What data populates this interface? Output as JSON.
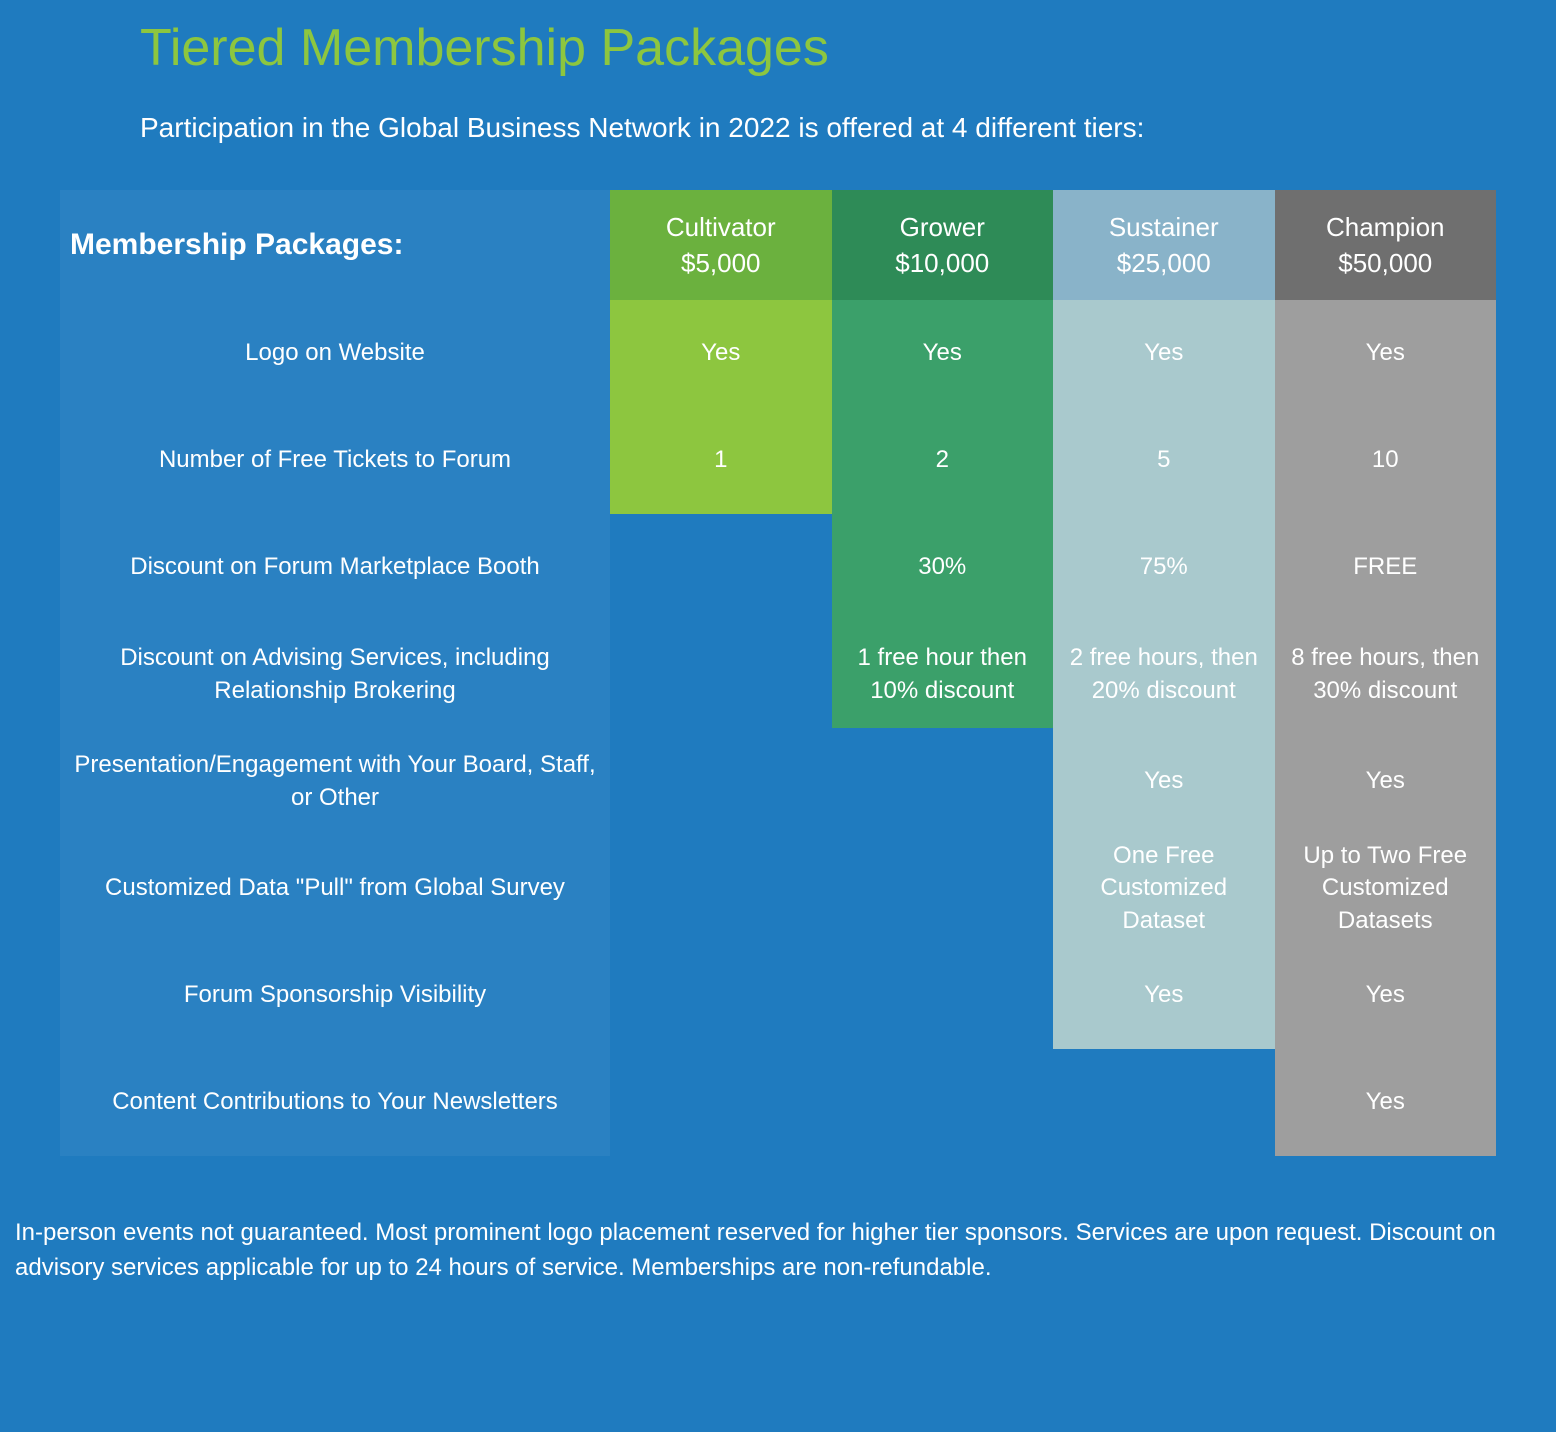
{
  "page": {
    "title": "Tiered Membership Packages",
    "subtitle": "Participation in the Global Business Network in 2022 is offered at 4 different tiers:",
    "footnote": "In-person events not guaranteed. Most prominent logo placement reserved for higher tier sponsors. Services are upon request. Discount on advisory services applicable for up to 24 hours of service. Memberships are non-refundable.",
    "background_color": "#1f7bbf",
    "title_color": "#8dc63f"
  },
  "table": {
    "header_label": "Membership Packages:",
    "tiers": [
      {
        "name": "Cultivator",
        "price": "$5,000",
        "head_color": "#6bb13e",
        "body_color": "#8dc63f",
        "rows_filled": 2
      },
      {
        "name": "Grower",
        "price": "$10,000",
        "head_color": "#2e8b57",
        "body_color": "#3ba06a",
        "rows_filled": 4
      },
      {
        "name": "Sustainer",
        "price": "$25,000",
        "head_color": "#89b3c9",
        "body_color": "#a9c9cd",
        "rows_filled": 7
      },
      {
        "name": "Champion",
        "price": "$50,000",
        "head_color": "#6f6f6f",
        "body_color": "#9e9e9e",
        "rows_filled": 8
      }
    ],
    "features": [
      {
        "label": "Logo on Website",
        "values": [
          "Yes",
          "Yes",
          "Yes",
          "Yes"
        ]
      },
      {
        "label": "Number of Free Tickets to Forum",
        "values": [
          "1",
          "2",
          "5",
          "10"
        ]
      },
      {
        "label": "Discount on Forum Marketplace Booth",
        "values": [
          "",
          "30%",
          "75%",
          "FREE"
        ]
      },
      {
        "label": "Discount on Advising Services, including Relationship Brokering",
        "values": [
          "",
          "1 free hour then 10% discount",
          "2 free hours, then 20% discount",
          "8 free hours, then 30% discount"
        ]
      },
      {
        "label": "Presentation/Engagement with Your Board, Staff, or Other",
        "values": [
          "",
          "",
          "Yes",
          "Yes"
        ]
      },
      {
        "label": "Customized Data \"Pull\" from Global Survey",
        "values": [
          "",
          "",
          "One Free Customized Dataset",
          "Up to Two Free Customized Datasets"
        ]
      },
      {
        "label": "Forum Sponsorship Visibility",
        "values": [
          "",
          "",
          "Yes",
          "Yes"
        ]
      },
      {
        "label": "Content Contributions to Your Newsletters",
        "values": [
          "",
          "",
          "",
          "Yes"
        ]
      }
    ]
  }
}
